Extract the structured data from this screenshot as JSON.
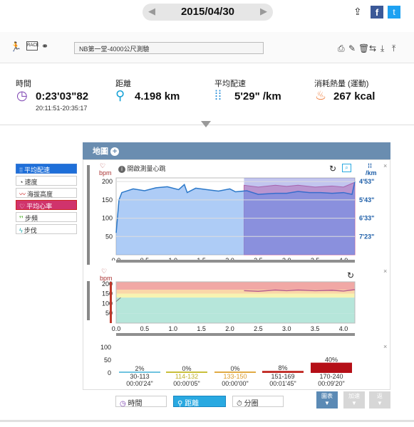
{
  "date": {
    "value": "2015/04/30",
    "prev": "◀",
    "next": "▶"
  },
  "share": {
    "fb": "f",
    "tw": "t"
  },
  "activity": {
    "title": "NB第一堂-4000公尺測驗",
    "icons": [
      "run-icon",
      "race-icon",
      "bike-icon"
    ]
  },
  "stats": {
    "time": {
      "label": "時間",
      "value": "0:23'03\"82",
      "sub": "20:11:51-20:35:17"
    },
    "distance": {
      "label": "距離",
      "value": "4.198 km"
    },
    "pace": {
      "label": "平均配速",
      "value": "5'29\" /km"
    },
    "calories": {
      "label": "消耗熱量 (運動)",
      "value": "267 kcal"
    }
  },
  "legend": [
    "平均配速",
    "速度",
    "海拔高度",
    "平均心率",
    "步頻",
    "步伐"
  ],
  "panel": {
    "title": "地圖",
    "hint": "開啟測量心跳",
    "unit_left": "bpm",
    "unit_right": "/km"
  },
  "chart_data": [
    {
      "type": "area",
      "title": "",
      "xlabel": "",
      "ylabel": "bpm",
      "xlim": [
        0,
        4.2
      ],
      "ylim": [
        0,
        210
      ],
      "x_ticks": [
        "0.0",
        "0.5",
        "1.0",
        "1.5",
        "2.0",
        "2.5",
        "3.0",
        "3.5",
        "4.0"
      ],
      "y_ticks_left": [
        "200",
        "150",
        "100",
        "50"
      ],
      "y_ticks_right": [
        "4'53\"",
        "5'43\"",
        "6'33\"",
        "7'23\""
      ],
      "series": [
        {
          "values": [
            [
              0,
              60
            ],
            [
              0.05,
              150
            ],
            [
              0.1,
              170
            ],
            [
              0.3,
              180
            ],
            [
              0.5,
              175
            ],
            [
              0.7,
              183
            ],
            [
              0.9,
              186
            ],
            [
              1.1,
              178
            ],
            [
              1.2,
              192
            ],
            [
              1.25,
              170
            ],
            [
              1.4,
              182
            ],
            [
              1.6,
              178
            ],
            [
              1.8,
              174
            ],
            [
              2.0,
              180
            ],
            [
              2.1,
              172
            ],
            [
              2.3,
              175
            ],
            [
              2.5,
              165
            ],
            [
              2.8,
              168
            ],
            [
              3.0,
              168
            ],
            [
              3.2,
              173
            ],
            [
              3.4,
              170
            ],
            [
              3.6,
              170
            ],
            [
              3.8,
              168
            ],
            [
              4.0,
              170
            ],
            [
              4.15,
              165
            ],
            [
              4.2,
              200
            ]
          ]
        },
        {
          "values": [
            [
              2.25,
              190
            ],
            [
              2.5,
              185
            ],
            [
              2.8,
              190
            ],
            [
              3.0,
              187
            ],
            [
              3.2,
              190
            ],
            [
              3.5,
              185
            ],
            [
              3.8,
              188
            ],
            [
              4.0,
              185
            ],
            [
              4.2,
              198
            ]
          ]
        }
      ]
    },
    {
      "type": "line",
      "title": "",
      "ylabel": "bpm",
      "xlim": [
        0,
        4.2
      ],
      "ylim": [
        0,
        210
      ],
      "x_ticks": [
        "0.0",
        "0.5",
        "1.0",
        "1.5",
        "2.0",
        "2.5",
        "3.0",
        "3.5",
        "4.0"
      ],
      "y_ticks": [
        "200",
        "150",
        "100",
        "50"
      ],
      "series": [
        {
          "values": [
            [
              2.25,
              165
            ],
            [
              2.5,
              162
            ],
            [
              2.8,
              168
            ],
            [
              3.0,
              165
            ],
            [
              3.2,
              168
            ],
            [
              3.5,
              165
            ],
            [
              3.8,
              167
            ],
            [
              4.0,
              163
            ],
            [
              4.2,
              170
            ]
          ]
        }
      ]
    },
    {
      "type": "bar",
      "title": "",
      "ylim": [
        0,
        100
      ],
      "y_ticks": [
        "100",
        "50",
        "0"
      ],
      "categories": [
        "30-113",
        "114-132",
        "133-150",
        "151-169",
        "170-240"
      ],
      "values": [
        2,
        0,
        0,
        8,
        40
      ],
      "labels": [
        "2%",
        "0%",
        "0%",
        "8%",
        "40%"
      ],
      "times": [
        "00:00'24\"",
        "00:00'05\"",
        "00:00'00\"",
        "00:01'45\"",
        "00:09'20\""
      ],
      "colors": [
        "#6fc3e0",
        "#c9bf3a",
        "#e1aa43",
        "#c12b25",
        "#b50f17"
      ]
    }
  ],
  "tabs": [
    "時間",
    "距離",
    "分圈"
  ],
  "buttons": [
    "圖表",
    "加速",
    "返"
  ]
}
